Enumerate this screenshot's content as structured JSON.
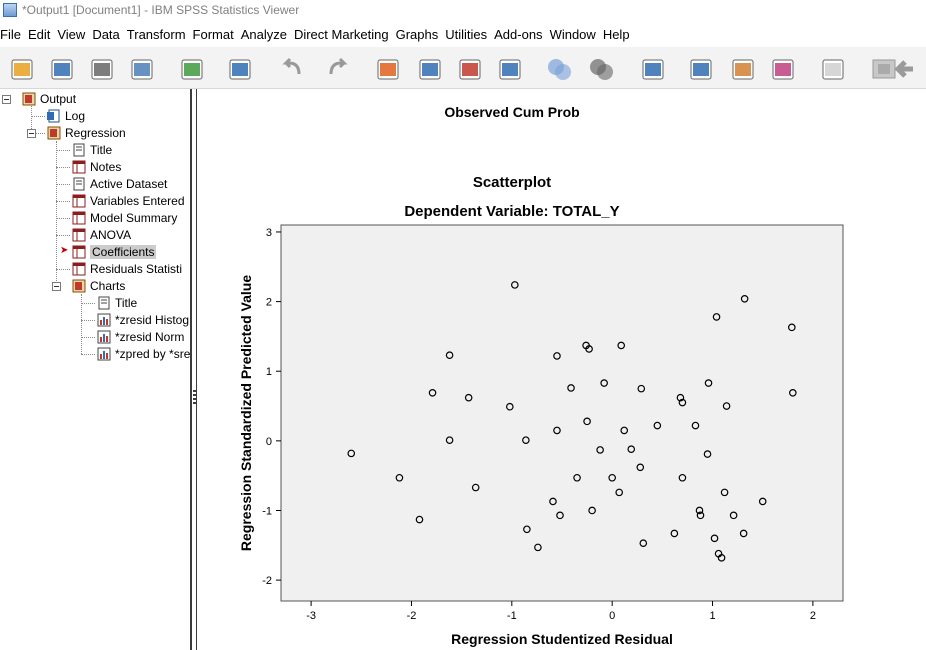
{
  "window": {
    "title": "*Output1 [Document1] - IBM SPSS Statistics Viewer"
  },
  "menu": [
    "File",
    "Edit",
    "View",
    "Data",
    "Transform",
    "Format",
    "Analyze",
    "Direct Marketing",
    "Graphs",
    "Utilities",
    "Add-ons",
    "Window",
    "Help"
  ],
  "toolbar_icons": [
    "open-folder-icon",
    "save-icon",
    "print-icon",
    "print-preview-icon",
    "export-icon",
    "goto-data-icon",
    "undo-icon",
    "redo-icon",
    "goto-case-icon",
    "goto-variable-icon",
    "insert-cases-icon",
    "variables-icon",
    "select-last-output-icon",
    "designate-window-icon",
    "promote-icon",
    "demote-icon",
    "show-all-icon",
    "hide-icon",
    "insert-title-icon",
    "insert-text-icon",
    "insert-heading-icon",
    "back-arrow-icon"
  ],
  "outline": {
    "output": "Output",
    "log": "Log",
    "regression": "Regression",
    "title": "Title",
    "notes": "Notes",
    "active_dataset": "Active Dataset",
    "variables_entered": "Variables Entered",
    "model_summary": "Model Summary",
    "anova": "ANOVA",
    "coefficients": "Coefficients",
    "residuals_statistics": "Residuals Statisti",
    "charts": "Charts",
    "charts_title": "Title",
    "chart1": "*zresid Histog",
    "chart2": "*zresid Norm",
    "chart3": "*zpred by *sre"
  },
  "viewer": {
    "previous_chart_xlabel": "Observed Cum Prob",
    "chart_heading": "Scatterplot"
  },
  "chart_data": {
    "type": "scatter",
    "title": "Dependent Variable: TOTAL_Y",
    "xlabel": "Regression Studentized Residual",
    "ylabel": "Regression Standardized Predicted Value",
    "xlim": [
      -3.3,
      2.3
    ],
    "ylim": [
      -2.3,
      3.1
    ],
    "xticks": [
      -3,
      -2,
      -1,
      0,
      1,
      2
    ],
    "yticks": [
      -2,
      -1,
      0,
      1,
      2,
      3
    ],
    "point_color": "#000000",
    "background": "#f0f0f0",
    "points": [
      [
        -2.6,
        -0.18
      ],
      [
        -2.12,
        -0.53
      ],
      [
        -1.92,
        -1.13
      ],
      [
        -1.79,
        0.69
      ],
      [
        -1.62,
        1.23
      ],
      [
        -1.62,
        0.01
      ],
      [
        -1.43,
        0.62
      ],
      [
        -1.36,
        -0.67
      ],
      [
        -1.02,
        0.49
      ],
      [
        -0.97,
        2.24
      ],
      [
        -0.86,
        0.01
      ],
      [
        -0.85,
        -1.27
      ],
      [
        -0.74,
        -1.53
      ],
      [
        -0.59,
        -0.87
      ],
      [
        -0.55,
        0.15
      ],
      [
        -0.55,
        1.22
      ],
      [
        -0.52,
        -1.07
      ],
      [
        -0.41,
        0.76
      ],
      [
        -0.35,
        -0.53
      ],
      [
        -0.26,
        1.37
      ],
      [
        -0.25,
        0.28
      ],
      [
        -0.23,
        1.32
      ],
      [
        -0.2,
        -1.0
      ],
      [
        -0.12,
        -0.13
      ],
      [
        -0.08,
        0.83
      ],
      [
        0.0,
        -0.53
      ],
      [
        0.07,
        -0.74
      ],
      [
        0.09,
        1.37
      ],
      [
        0.12,
        0.15
      ],
      [
        0.19,
        -0.12
      ],
      [
        0.28,
        -0.38
      ],
      [
        0.29,
        0.75
      ],
      [
        0.31,
        -1.47
      ],
      [
        0.45,
        0.22
      ],
      [
        0.62,
        -1.33
      ],
      [
        0.68,
        0.62
      ],
      [
        0.7,
        0.55
      ],
      [
        0.7,
        -0.53
      ],
      [
        0.83,
        0.22
      ],
      [
        0.87,
        -1.0
      ],
      [
        0.88,
        -1.07
      ],
      [
        0.95,
        -0.19
      ],
      [
        0.96,
        0.83
      ],
      [
        1.02,
        -1.4
      ],
      [
        1.04,
        1.78
      ],
      [
        1.06,
        -1.62
      ],
      [
        1.09,
        -1.68
      ],
      [
        1.12,
        -0.74
      ],
      [
        1.14,
        0.5
      ],
      [
        1.21,
        -1.07
      ],
      [
        1.31,
        -1.33
      ],
      [
        1.32,
        2.04
      ],
      [
        1.5,
        -0.87
      ],
      [
        1.79,
        1.63
      ],
      [
        1.8,
        0.69
      ]
    ]
  }
}
